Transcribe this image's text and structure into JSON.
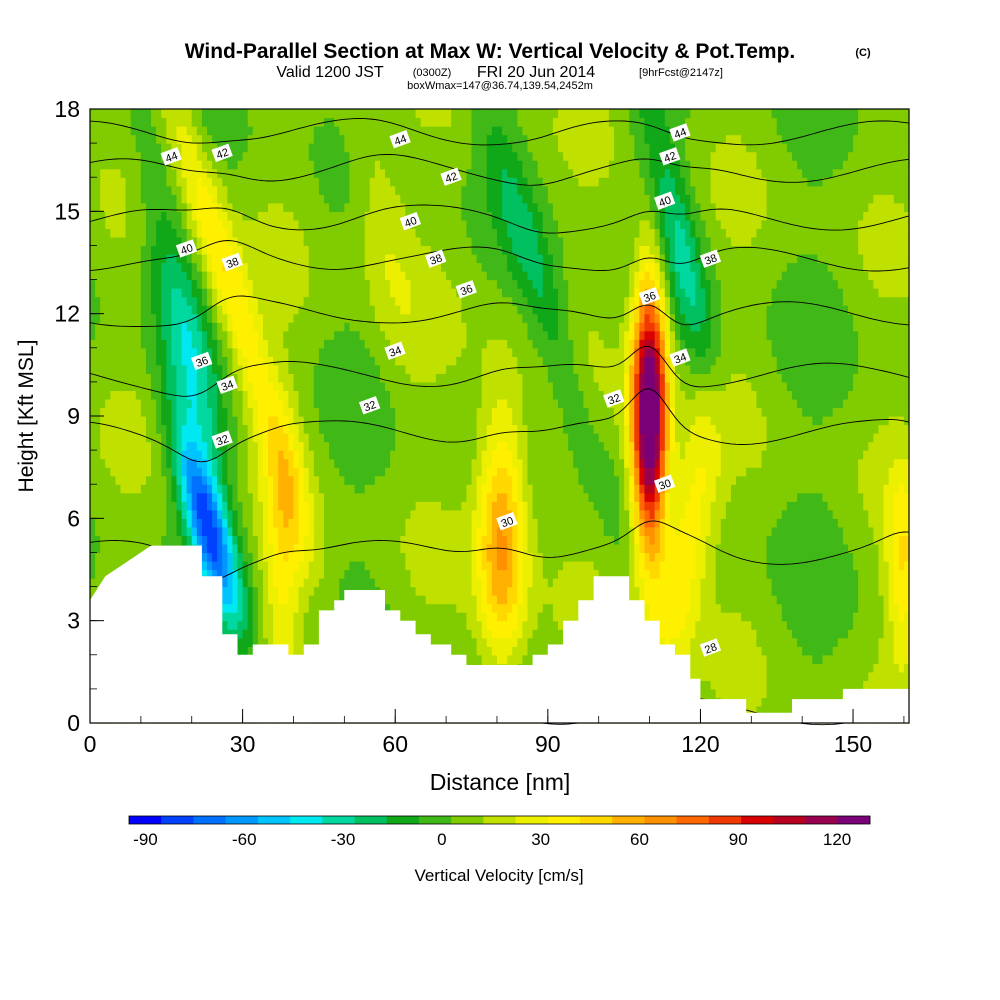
{
  "chart_data": {
    "type": "heatmap",
    "title": "Wind-Parallel Section at Max W: Vertical Velocity & Pot.Temp.",
    "title_mark": "(C)",
    "subtitle": {
      "valid_prefix": "Valid 1200 JST",
      "utc": "(0300Z)",
      "date": "FRI 20 Jun 2014",
      "forecast": "[9hrFcst@2147z]",
      "boxwmax": "boxWmax=147@36.74,139.54,2452m"
    },
    "xlabel": "Distance [nm]",
    "ylabel": "Height [Kft MSL]",
    "xlim": [
      0,
      161
    ],
    "ylim": [
      0,
      18
    ],
    "xticks": [
      "0",
      "30",
      "60",
      "90",
      "120",
      "150"
    ],
    "yticks": [
      "0",
      "3",
      "6",
      "9",
      "12",
      "15",
      "18"
    ],
    "colorbar": {
      "label": "Vertical Velocity [cm/s]",
      "ticks": [
        "-90",
        "-60",
        "-30",
        "0",
        "30",
        "60",
        "90",
        "120"
      ],
      "min": -95,
      "max": 130,
      "step": 10,
      "colors": [
        "#0000ff",
        "#0040ff",
        "#0070ff",
        "#0098ff",
        "#00c4ff",
        "#00e8f0",
        "#00d8a0",
        "#00c060",
        "#10a818",
        "#40b818",
        "#80cc00",
        "#c0e000",
        "#ecf000",
        "#fff000",
        "#ffd800",
        "#ffb000",
        "#ff9000",
        "#ff6800",
        "#f03800",
        "#d80000",
        "#b80020",
        "#980050",
        "#7a0078"
      ]
    },
    "features": [
      {
        "name": "downdraft",
        "x": 23,
        "z": 5.8,
        "sx": 2.8,
        "sz": 2.0,
        "tilt": -1.8,
        "w": -78
      },
      {
        "name": "downdraft-upper",
        "x": 21,
        "z": 10,
        "sx": 3.0,
        "sz": 3.0,
        "tilt": -1.3,
        "w": -18
      },
      {
        "name": "updraft-tilted",
        "x": 27,
        "z": 13,
        "sx": 3.0,
        "sz": 5.0,
        "tilt": -2.0,
        "w": 38
      },
      {
        "name": "updraft-low",
        "x": 38,
        "z": 5.0,
        "sx": 2.8,
        "sz": 2.8,
        "tilt": 0,
        "w": 30
      },
      {
        "name": "updraft-main",
        "x": 81,
        "z": 5.5,
        "sx": 3.5,
        "sz": 2.8,
        "tilt": 0,
        "w": 62
      },
      {
        "name": "downdraft-2",
        "x": 88,
        "z": 13,
        "sx": 3.0,
        "sz": 4.0,
        "tilt": -2.0,
        "w": -22
      },
      {
        "name": "updraft-peak",
        "x": 110,
        "z": 9,
        "sx": 2.4,
        "sz": 2.8,
        "tilt": 0,
        "w": 147
      },
      {
        "name": "updraft-right",
        "x": 117,
        "z": 5,
        "sx": 3.5,
        "sz": 3.0,
        "tilt": 1.0,
        "w": 38
      },
      {
        "name": "downdraft-3",
        "x": 116,
        "z": 14,
        "sx": 3.0,
        "sz": 3.0,
        "tilt": -1.5,
        "w": -32
      },
      {
        "name": "shear-left",
        "x": 17,
        "z": 12,
        "sx": 3.5,
        "sz": 4.0,
        "tilt": -1.2,
        "w": -20
      },
      {
        "name": "updraft-far",
        "x": 160,
        "z": 4.5,
        "sx": 2.5,
        "sz": 2.0,
        "tilt": 0,
        "w": 35
      },
      {
        "name": "updraft-upper-mid",
        "x": 57,
        "z": 15,
        "sx": 4.0,
        "sz": 3.0,
        "tilt": -1.0,
        "w": 18
      }
    ],
    "terrain": [
      [
        0,
        3.6
      ],
      [
        3,
        4.3
      ],
      [
        6,
        4.6
      ],
      [
        9,
        4.9
      ],
      [
        12,
        5.2
      ],
      [
        22,
        5.2
      ],
      [
        22,
        4.3
      ],
      [
        26,
        4.3
      ],
      [
        26,
        2.6
      ],
      [
        29,
        2.6
      ],
      [
        29,
        2.0
      ],
      [
        32,
        2.0
      ],
      [
        32,
        2.3
      ],
      [
        39,
        2.3
      ],
      [
        39,
        2.0
      ],
      [
        42,
        2.0
      ],
      [
        42,
        2.3
      ],
      [
        45,
        2.3
      ],
      [
        45,
        3.3
      ],
      [
        48,
        3.3
      ],
      [
        48,
        3.6
      ],
      [
        50,
        3.6
      ],
      [
        50,
        3.9
      ],
      [
        58,
        3.9
      ],
      [
        58,
        3.3
      ],
      [
        61,
        3.3
      ],
      [
        61,
        3.0
      ],
      [
        64,
        3.0
      ],
      [
        64,
        2.6
      ],
      [
        67,
        2.6
      ],
      [
        67,
        2.3
      ],
      [
        71,
        2.3
      ],
      [
        71,
        2.0
      ],
      [
        74,
        2.0
      ],
      [
        74,
        1.7
      ],
      [
        87,
        1.7
      ],
      [
        87,
        2.0
      ],
      [
        90,
        2.0
      ],
      [
        90,
        2.3
      ],
      [
        93,
        2.3
      ],
      [
        93,
        3.0
      ],
      [
        96,
        3.0
      ],
      [
        96,
        3.6
      ],
      [
        99,
        3.6
      ],
      [
        99,
        4.3
      ],
      [
        106,
        4.3
      ],
      [
        106,
        3.6
      ],
      [
        109,
        3.6
      ],
      [
        109,
        3.0
      ],
      [
        112,
        3.0
      ],
      [
        112,
        2.3
      ],
      [
        115,
        2.3
      ],
      [
        115,
        2.0
      ],
      [
        118,
        2.0
      ],
      [
        118,
        1.3
      ],
      [
        120,
        1.3
      ],
      [
        120,
        0.7
      ],
      [
        129,
        0.7
      ],
      [
        129,
        0.3
      ],
      [
        138,
        0.3
      ],
      [
        138,
        0.7
      ],
      [
        148,
        0.7
      ],
      [
        148,
        1.0
      ],
      [
        161,
        1.0
      ]
    ],
    "theta_contours": [
      {
        "label": "28",
        "levels": [
          [
            0,
            0.3
          ],
          [
            161,
            0.3
          ]
        ]
      },
      {
        "label": "30",
        "levels": [
          [
            0,
            5.0
          ],
          [
            161,
            5.0
          ]
        ]
      },
      {
        "label": "32",
        "levels": [
          [
            0,
            8.5
          ],
          [
            161,
            8.5
          ]
        ]
      },
      {
        "label": "34",
        "levels": [
          [
            0,
            10.2
          ],
          [
            161,
            10.2
          ]
        ]
      },
      {
        "label": "36",
        "levels": [
          [
            0,
            12.0
          ],
          [
            161,
            12.0
          ]
        ]
      },
      {
        "label": "38",
        "levels": [
          [
            0,
            13.6
          ],
          [
            161,
            13.6
          ]
        ]
      },
      {
        "label": "40",
        "levels": [
          [
            0,
            14.8
          ],
          [
            161,
            14.8
          ]
        ]
      },
      {
        "label": "42",
        "levels": [
          [
            0,
            16.2
          ],
          [
            161,
            16.2
          ]
        ]
      },
      {
        "label": "44",
        "levels": [
          [
            0,
            17.3
          ],
          [
            161,
            17.3
          ]
        ]
      }
    ],
    "contour_labels": [
      {
        "text": "44",
        "x": 16,
        "y": 16.6
      },
      {
        "text": "42",
        "x": 26,
        "y": 16.7
      },
      {
        "text": "40",
        "x": 19,
        "y": 13.9
      },
      {
        "text": "38",
        "x": 28,
        "y": 13.5
      },
      {
        "text": "36",
        "x": 22,
        "y": 10.6
      },
      {
        "text": "34",
        "x": 27,
        "y": 9.9
      },
      {
        "text": "32",
        "x": 26,
        "y": 8.3
      },
      {
        "text": "44",
        "x": 61,
        "y": 17.1
      },
      {
        "text": "42",
        "x": 71,
        "y": 16.0
      },
      {
        "text": "40",
        "x": 63,
        "y": 14.7
      },
      {
        "text": "38",
        "x": 68,
        "y": 13.6
      },
      {
        "text": "36",
        "x": 74,
        "y": 12.7
      },
      {
        "text": "34",
        "x": 60,
        "y": 10.9
      },
      {
        "text": "32",
        "x": 55,
        "y": 9.3
      },
      {
        "text": "30",
        "x": 82,
        "y": 5.9
      },
      {
        "text": "44",
        "x": 116,
        "y": 17.3
      },
      {
        "text": "42",
        "x": 114,
        "y": 16.6
      },
      {
        "text": "40",
        "x": 113,
        "y": 15.3
      },
      {
        "text": "38",
        "x": 122,
        "y": 13.6
      },
      {
        "text": "36",
        "x": 110,
        "y": 12.5
      },
      {
        "text": "34",
        "x": 116,
        "y": 10.7
      },
      {
        "text": "32",
        "x": 103,
        "y": 9.5
      },
      {
        "text": "30",
        "x": 113,
        "y": 7.0
      },
      {
        "text": "28",
        "x": 122,
        "y": 2.2
      }
    ]
  }
}
